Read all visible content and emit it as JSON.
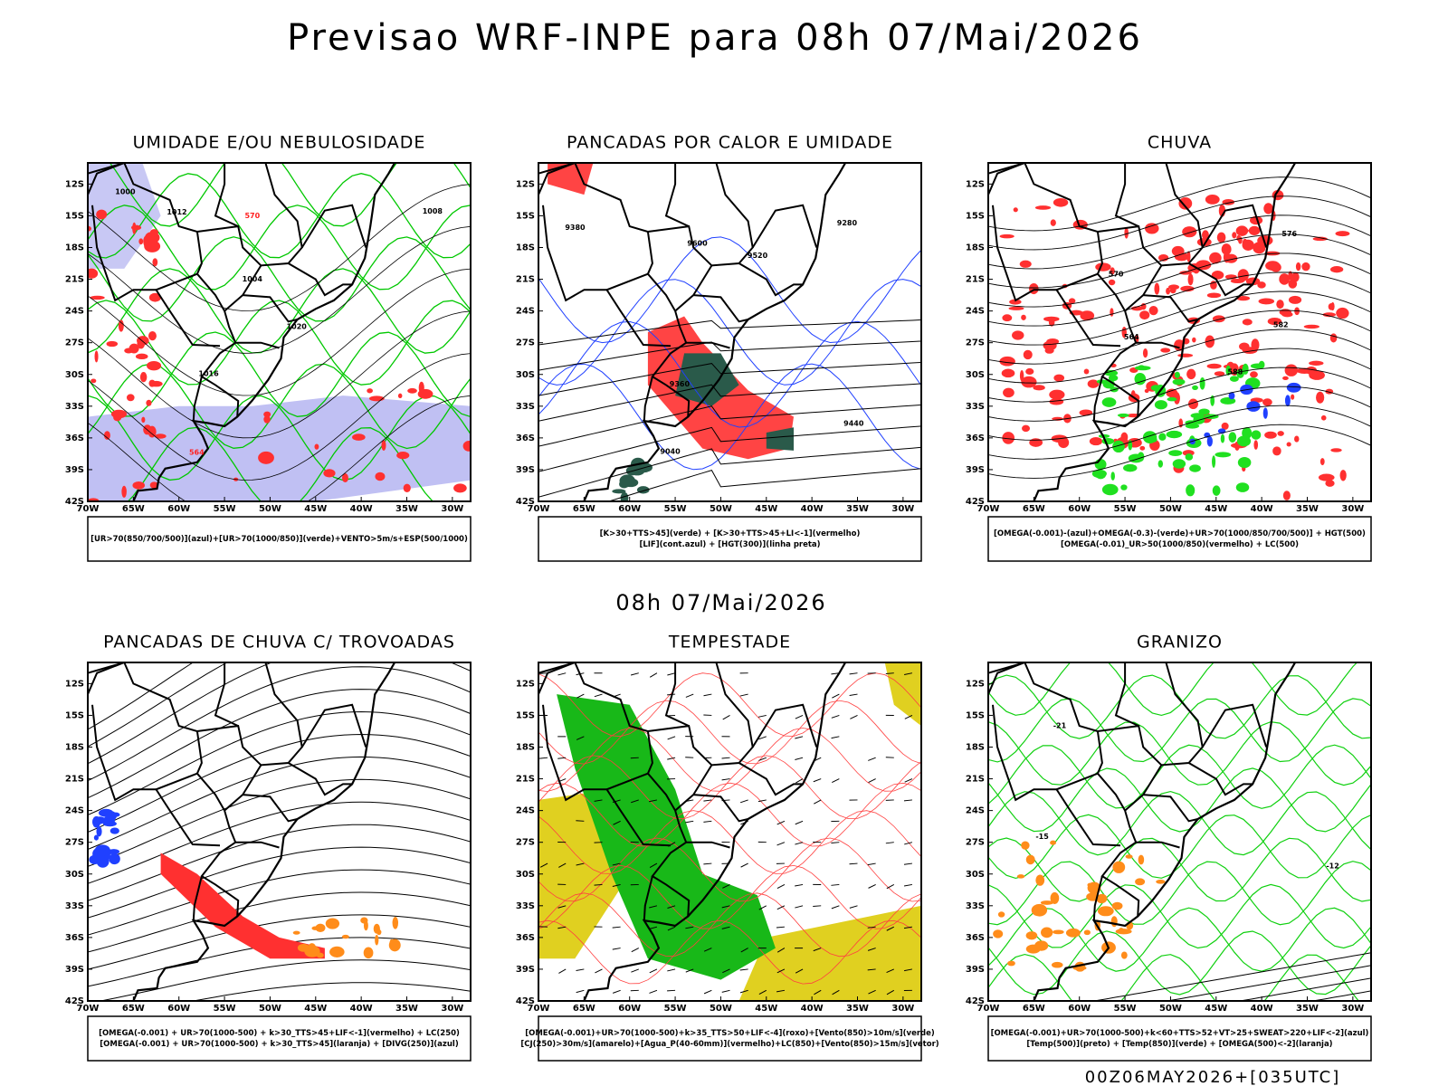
{
  "title": "Previsao WRF-INPE  para 08h 07/Mai/2026",
  "subtitle": "08h 07/Mai/2026",
  "footer": "00Z06MAY2026+[035UTC]",
  "lat_ticks": [
    "12S",
    "15S",
    "18S",
    "21S",
    "24S",
    "27S",
    "30S",
    "33S",
    "36S",
    "39S",
    "42S"
  ],
  "lon_ticks": [
    "70W",
    "65W",
    "60W",
    "55W",
    "50W",
    "45W",
    "40W",
    "35W",
    "30W"
  ],
  "panels": [
    {
      "title": "UMIDADE E/OU NEBULOSIDADE",
      "legend": [
        "[UR>70(850/700/500)](azul)+[UR>70(1000/850)](verde)+VENTO>5m/s+ESP(500/1000)"
      ],
      "labels": [
        "1012",
        "1016",
        "1020",
        "1008",
        "1004",
        "1000",
        "570",
        "564"
      ]
    },
    {
      "title": "PANCADAS POR CALOR E UMIDADE",
      "legend": [
        "[K>30+TTS>45](verde) + [K>30+TTS>45+LI<-1](vermelho)",
        "[LIF](cont.azul) + [HGT(300)](linha preta)"
      ],
      "labels": [
        "9600",
        "9520",
        "9440",
        "9360",
        "9280",
        "9040",
        "9380"
      ]
    },
    {
      "title": "CHUVA",
      "legend": [
        "[OMEGA(-0.001)-(azul)+OMEGA(-0.3)-(verde)+UR>70(1000/850/700/500)] + HGT(500)",
        "[OMEGA(-0.01)_UR>50(1000/850)(vermelho) + LC(500)"
      ],
      "labels": [
        "588",
        "582",
        "576",
        "570",
        "564"
      ]
    },
    {
      "title": "PANCADAS DE CHUVA C/ TROVOADAS",
      "legend": [
        "[OMEGA(-0.001) + UR>70(1000-500) + k>30_TTS>45+LIF<-1](vermelho) + LC(250)",
        "[OMEGA(-0.001) + UR>70(1000-500) + k>30_TTS>45](laranja) + [DIVG(250)](azul)"
      ],
      "labels": []
    },
    {
      "title": "TEMPESTADE",
      "legend": [
        "[OMEGA(-0.001)+UR>70(1000-500)+k>35_TTS>50+LIF<-4](roxo)+[Vento(850)>10m/s](verde)",
        "[CJ(250)>30m/s](amarelo)+[Agua_P(40-60mm)](vermelho)+LC(850)+[Vento(850)>15m/s](vetor)"
      ],
      "labels": []
    },
    {
      "title": "GRANIZO",
      "legend": [
        "[OMEGA(-0.001)+UR>70(1000-500)+k<60+TTS>52+VT>25+SWEAT>220+LIF<-2](azul)",
        "[Temp(500)](preto) + [Temp(850)](verde) + [OMEGA(500)<-2](laranja)"
      ],
      "labels": [
        "-12",
        "-15",
        "-21"
      ]
    }
  ]
}
